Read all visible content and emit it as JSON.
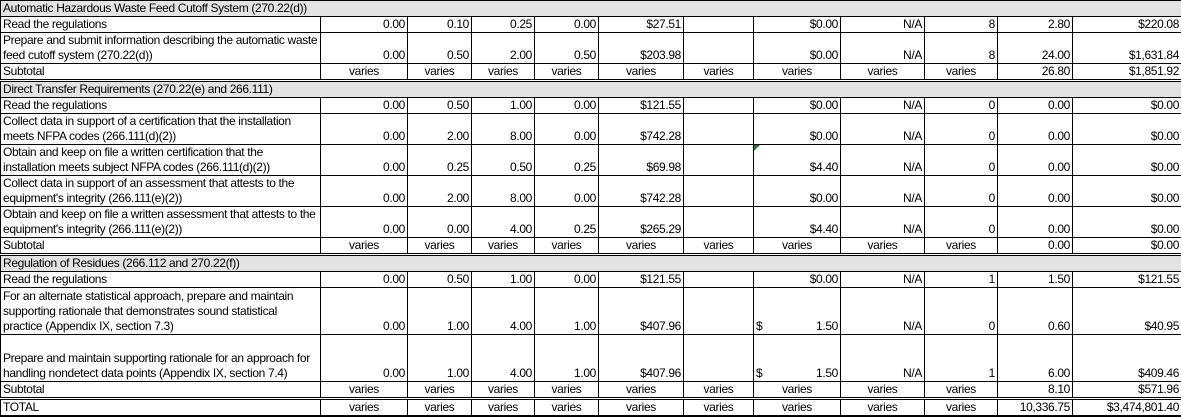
{
  "colors": {
    "section_bg": "#e3e3e3",
    "flag": "#1a8a1a"
  },
  "rows": [
    {
      "type": "section",
      "label": "Automatic  Hazardous Waste Feed Cutoff System (270.22(d))"
    },
    {
      "type": "item",
      "h": 1,
      "desc": "Read the regulations",
      "cells": [
        "0.00",
        "0.10",
        "0.25",
        "0.00",
        "$27.51",
        "",
        "$0.00",
        "N/A",
        "8",
        "2.80",
        "$220.08"
      ]
    },
    {
      "type": "item",
      "h": 2,
      "desc": "Prepare and submit information describing the automatic waste feed cutoff system (270.22(d))",
      "cells": [
        "0.00",
        "0.50",
        "2.00",
        "0.50",
        "$203.98",
        "",
        "$0.00",
        "N/A",
        "8",
        "24.00",
        "$1,631.84"
      ]
    },
    {
      "type": "subtotal",
      "desc": "Subtotal",
      "cells": [
        "varies",
        "varies",
        "varies",
        "varies",
        "varies",
        "varies",
        "varies",
        "varies",
        "varies",
        "26.80",
        "$1,851.92"
      ]
    },
    {
      "type": "section",
      "label": "Direct Transfer Requirements (270.22(e) and 266.111)"
    },
    {
      "type": "item",
      "h": 1,
      "desc": "Read the regulations",
      "cells": [
        "0.00",
        "0.50",
        "1.00",
        "0.00",
        "$121.55",
        "",
        "$0.00",
        "N/A",
        "0",
        "0.00",
        "$0.00"
      ]
    },
    {
      "type": "item",
      "h": 2,
      "desc": "Collect data in support of a certification that the installation meets NFPA codes (266.111(d)(2))",
      "cells": [
        "0.00",
        "2.00",
        "8.00",
        "0.00",
        "$742.28",
        "",
        "$0.00",
        "N/A",
        "0",
        "0.00",
        "$0.00"
      ]
    },
    {
      "type": "item",
      "h": 2,
      "flag": 6,
      "desc": "Obtain and keep on file a written certification that the installation meets subject NFPA codes (266.111(d)(2))",
      "cells": [
        "0.00",
        "0.25",
        "0.50",
        "0.25",
        "$69.98",
        "",
        "$4.40",
        "N/A",
        "0",
        "0.00",
        "$0.00"
      ]
    },
    {
      "type": "item",
      "h": 2,
      "desc": "Collect data in support of an assessment that attests to the equipment's integrity (266.111(e)(2))",
      "cells": [
        "0.00",
        "2.00",
        "8.00",
        "0.00",
        "$742.28",
        "",
        "$0.00",
        "N/A",
        "0",
        "0.00",
        "$0.00"
      ]
    },
    {
      "type": "item",
      "h": 2,
      "desc": "Obtain and keep on file a written assessment that attests to the equipment's integrity (266.111(e)(2))",
      "cells": [
        "0.00",
        "0.00",
        "4.00",
        "0.25",
        "$265.29",
        "",
        "$4.40",
        "N/A",
        "0",
        "0.00",
        "$0.00"
      ]
    },
    {
      "type": "subtotal",
      "desc": "Subtotal",
      "cells": [
        "varies",
        "varies",
        "varies",
        "varies",
        "varies",
        "varies",
        "varies",
        "varies",
        "varies",
        "0.00",
        "$0.00"
      ]
    },
    {
      "type": "section",
      "label": "Regulation of Residues (266.112 and 270.22(f))"
    },
    {
      "type": "item",
      "h": 1,
      "desc": "Read the regulations",
      "cells": [
        "0.00",
        "0.50",
        "1.00",
        "0.00",
        "$121.55",
        "",
        "$0.00",
        "N/A",
        "1",
        "1.50",
        "$121.55"
      ]
    },
    {
      "type": "item",
      "h": 3,
      "desc": "For an alternate statistical approach, prepare and maintain supporting rationale that demonstrates sound statistical practice (Appendix IX, section 7.3)",
      "cells": [
        "0.00",
        "1.00",
        "4.00",
        "1.00",
        "$407.96",
        "",
        "$ 1.50",
        "N/A",
        "0",
        "0.60",
        "$40.95"
      ]
    },
    {
      "type": "item",
      "h": 3,
      "desc": "Prepare and maintain supporting rationale for an approach for handling nondetect data points (Appendix IX, section 7.4)",
      "cells": [
        "0.00",
        "1.00",
        "4.00",
        "1.00",
        "$407.96",
        "",
        "$ 1.50",
        "N/A",
        "1",
        "6.00",
        "$409.46"
      ]
    },
    {
      "type": "subtotal",
      "desc": "Subtotal",
      "cells": [
        "varies",
        "varies",
        "varies",
        "varies",
        "varies",
        "varies",
        "varies",
        "varies",
        "varies",
        "8.10",
        "$571.96"
      ]
    },
    {
      "type": "total",
      "desc": "TOTAL",
      "cells": [
        "varies",
        "varies",
        "varies",
        "varies",
        "varies",
        "varies",
        "varies",
        "varies",
        "varies",
        "10,336.75",
        "$3,474,801.40"
      ]
    }
  ]
}
